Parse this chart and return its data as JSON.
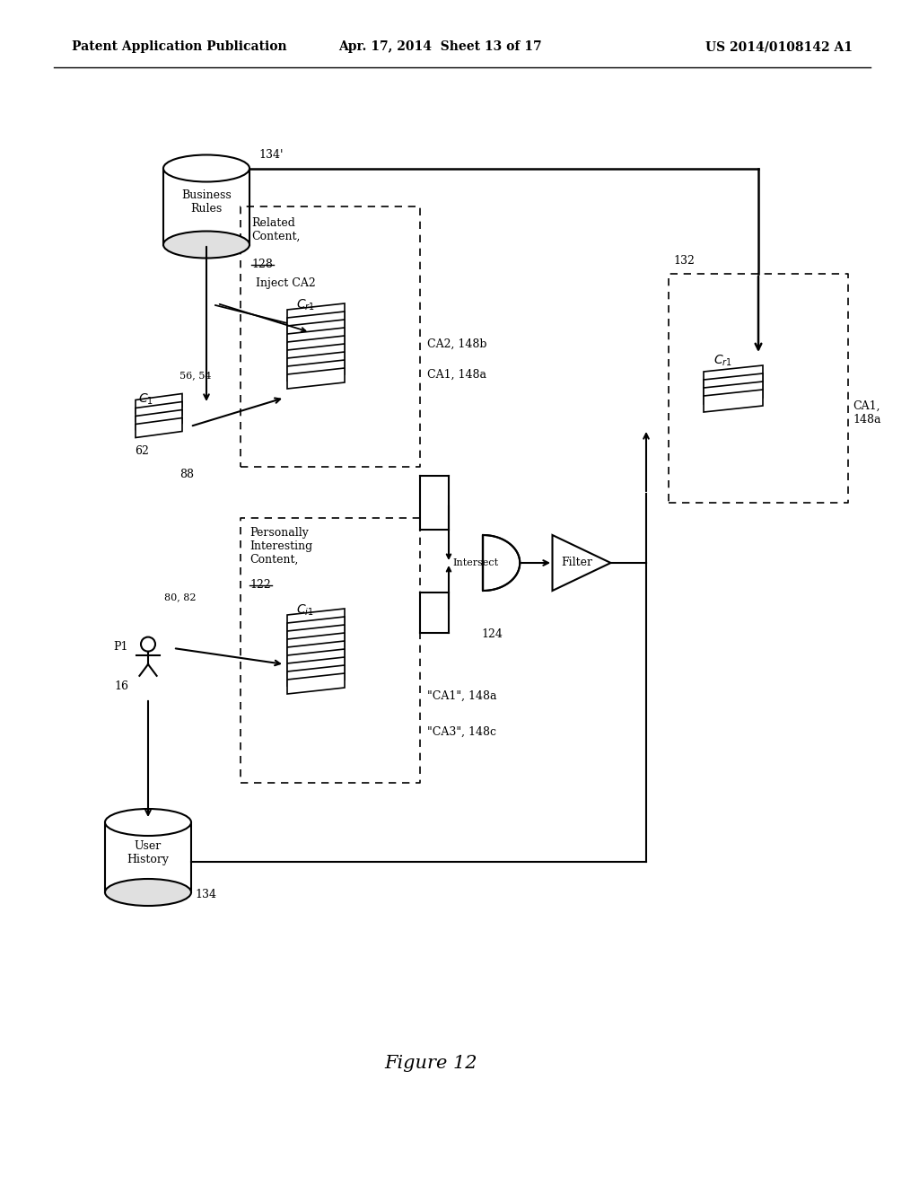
{
  "bg_color": "#ffffff",
  "header_left": "Patent Application Publication",
  "header_center": "Apr. 17, 2014  Sheet 13 of 17",
  "header_right": "US 2014/0108142 A1",
  "figure_caption": "Figure 12",
  "title_fontsize": 10,
  "body_fontsize": 9
}
